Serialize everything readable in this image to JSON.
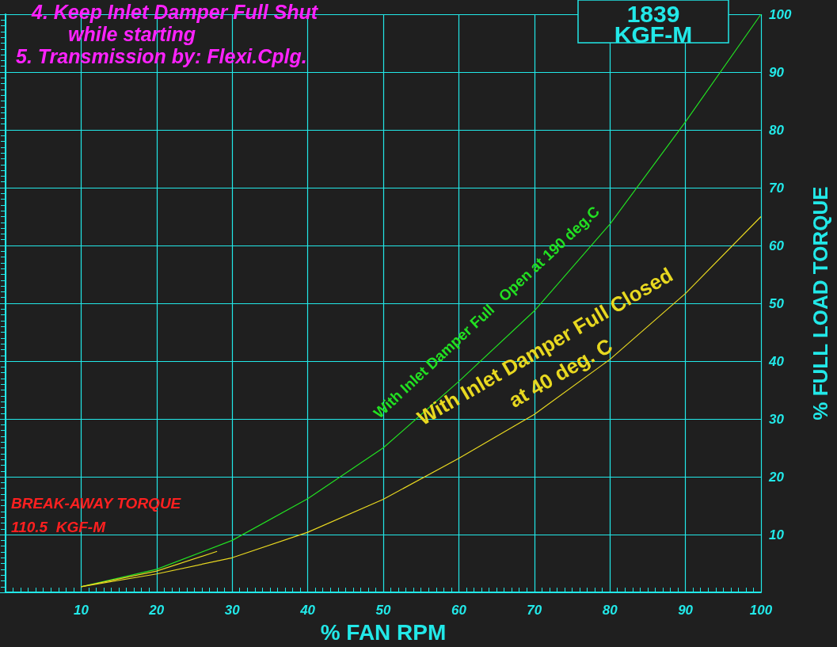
{
  "chart_data": {
    "type": "line",
    "xlabel": "% FAN RPM",
    "ylabel": "% FULL LOAD TORQUE",
    "x": [
      10,
      20,
      30,
      40,
      50,
      60,
      70,
      80,
      90,
      100
    ],
    "series": [
      {
        "name": "With Inlet Damper Full   Open at 190 deg.C",
        "color": "#22e022",
        "values": [
          1,
          4,
          9,
          16.2,
          25,
          36.5,
          48.7,
          63.7,
          81.4,
          100
        ]
      },
      {
        "name": "With Inlet Damper Full Closed\nat 40 deg. C",
        "color": "#e8d820",
        "values": [
          1,
          3.2,
          6,
          10.4,
          16.1,
          23.2,
          30.8,
          40.3,
          51.7,
          65
        ]
      },
      {
        "color": "#e8d820",
        "x": [
          10,
          20,
          28
        ],
        "values": [
          1,
          3.7,
          7.1
        ]
      }
    ],
    "xlim": [
      0,
      100
    ],
    "ylim": [
      0,
      100
    ],
    "xticks": [
      10,
      20,
      30,
      40,
      50,
      60,
      70,
      80,
      90,
      100
    ],
    "yticks": [
      10,
      20,
      30,
      40,
      50,
      60,
      70,
      80,
      90,
      100
    ],
    "grid": true,
    "legend": false,
    "marker": "none",
    "line_style": "solid",
    "annotations": [
      "4. Keep Inlet Damper Full Shut",
      "while starting",
      "5. Transmission by: Flexi.Cplg.",
      "1839\nKGF-M",
      "BREAK-AWAY TORQUE\n110.5  KGF-M"
    ]
  }
}
